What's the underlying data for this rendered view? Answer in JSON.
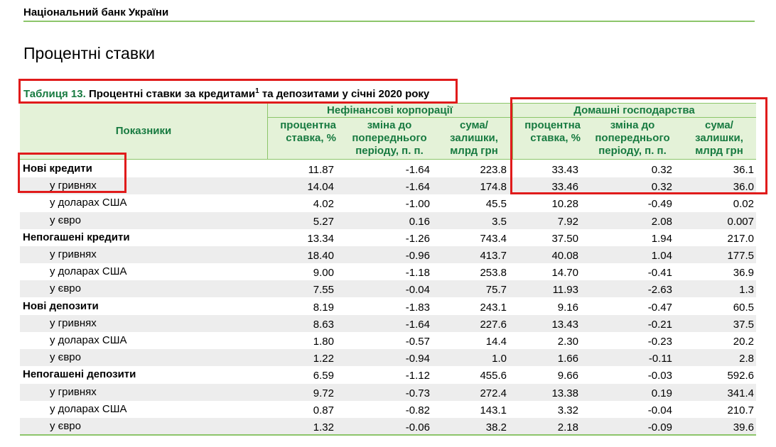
{
  "header": {
    "org": "Національний банк України",
    "page_title": "Процентні ставки"
  },
  "table": {
    "caption_number": "Таблиця 13.",
    "caption_text_part1": "Процентні ставки за кредитами",
    "caption_superscript": "1",
    "caption_text_part2": "та депозитами у січні 2020 року",
    "row_header": "Показники",
    "group1": "Нефінансові корпорації",
    "group2": "Домашні господарства",
    "columns": [
      {
        "line1": "процентна",
        "line2": "ставка, %",
        "line3": ""
      },
      {
        "line1": "зміна до",
        "line2": "попереднього",
        "line3": "періоду, п. п."
      },
      {
        "line1": "сума/",
        "line2": "залишки,",
        "line3": "млрд грн"
      },
      {
        "line1": "процентна",
        "line2": "ставка, %",
        "line3": ""
      },
      {
        "line1": "зміна до",
        "line2": "попереднього",
        "line3": "періоду, п. п."
      },
      {
        "line1": "сума/",
        "line2": "залишки,",
        "line3": "млрд грн"
      }
    ],
    "rows": [
      {
        "label": "Нові кредити",
        "category": true,
        "values": [
          "11.87",
          "-1.64",
          "223.8",
          "33.43",
          "0.32",
          "36.1"
        ]
      },
      {
        "label": "у гривнях",
        "category": false,
        "values": [
          "14.04",
          "-1.64",
          "174.8",
          "33.46",
          "0.32",
          "36.0"
        ]
      },
      {
        "label": "у доларах США",
        "category": false,
        "values": [
          "4.02",
          "-1.00",
          "45.5",
          "10.28",
          "-0.49",
          "0.02"
        ]
      },
      {
        "label": "у євро",
        "category": false,
        "values": [
          "5.27",
          "0.16",
          "3.5",
          "7.92",
          "2.08",
          "0.007"
        ]
      },
      {
        "label": "Непогашені кредити",
        "category": true,
        "values": [
          "13.34",
          "-1.26",
          "743.4",
          "37.50",
          "1.94",
          "217.0"
        ]
      },
      {
        "label": "у гривнях",
        "category": false,
        "values": [
          "18.40",
          "-0.96",
          "413.7",
          "40.08",
          "1.04",
          "177.5"
        ]
      },
      {
        "label": "у доларах США",
        "category": false,
        "values": [
          "9.00",
          "-1.18",
          "253.8",
          "14.70",
          "-0.41",
          "36.9"
        ]
      },
      {
        "label": "у євро",
        "category": false,
        "values": [
          "7.55",
          "-0.04",
          "75.7",
          "11.93",
          "-2.63",
          "1.3"
        ]
      },
      {
        "label": "Нові депозити",
        "category": true,
        "values": [
          "8.19",
          "-1.83",
          "243.1",
          "9.16",
          "-0.47",
          "60.5"
        ]
      },
      {
        "label": "у гривнях",
        "category": false,
        "values": [
          "8.63",
          "-1.64",
          "227.6",
          "13.43",
          "-0.21",
          "37.5"
        ]
      },
      {
        "label": "у доларах США",
        "category": false,
        "values": [
          "1.80",
          "-0.57",
          "14.4",
          "2.30",
          "-0.23",
          "20.2"
        ]
      },
      {
        "label": "у євро",
        "category": false,
        "values": [
          "1.22",
          "-0.94",
          "1.0",
          "1.66",
          "-0.11",
          "2.8"
        ]
      },
      {
        "label": "Непогашені депозити",
        "category": true,
        "values": [
          "6.59",
          "-1.12",
          "455.6",
          "9.66",
          "-0.03",
          "592.6"
        ]
      },
      {
        "label": "у гривнях",
        "category": false,
        "values": [
          "9.72",
          "-0.73",
          "272.4",
          "13.38",
          "0.19",
          "341.4"
        ]
      },
      {
        "label": "у доларах США",
        "category": false,
        "values": [
          "0.87",
          "-0.82",
          "143.1",
          "3.32",
          "-0.04",
          "210.7"
        ]
      },
      {
        "label": "у євро",
        "category": false,
        "values": [
          "1.32",
          "-0.06",
          "38.2",
          "2.18",
          "-0.09",
          "39.6"
        ]
      }
    ]
  },
  "highlight_color": "#e01b1b",
  "accent_color": "#177a40"
}
